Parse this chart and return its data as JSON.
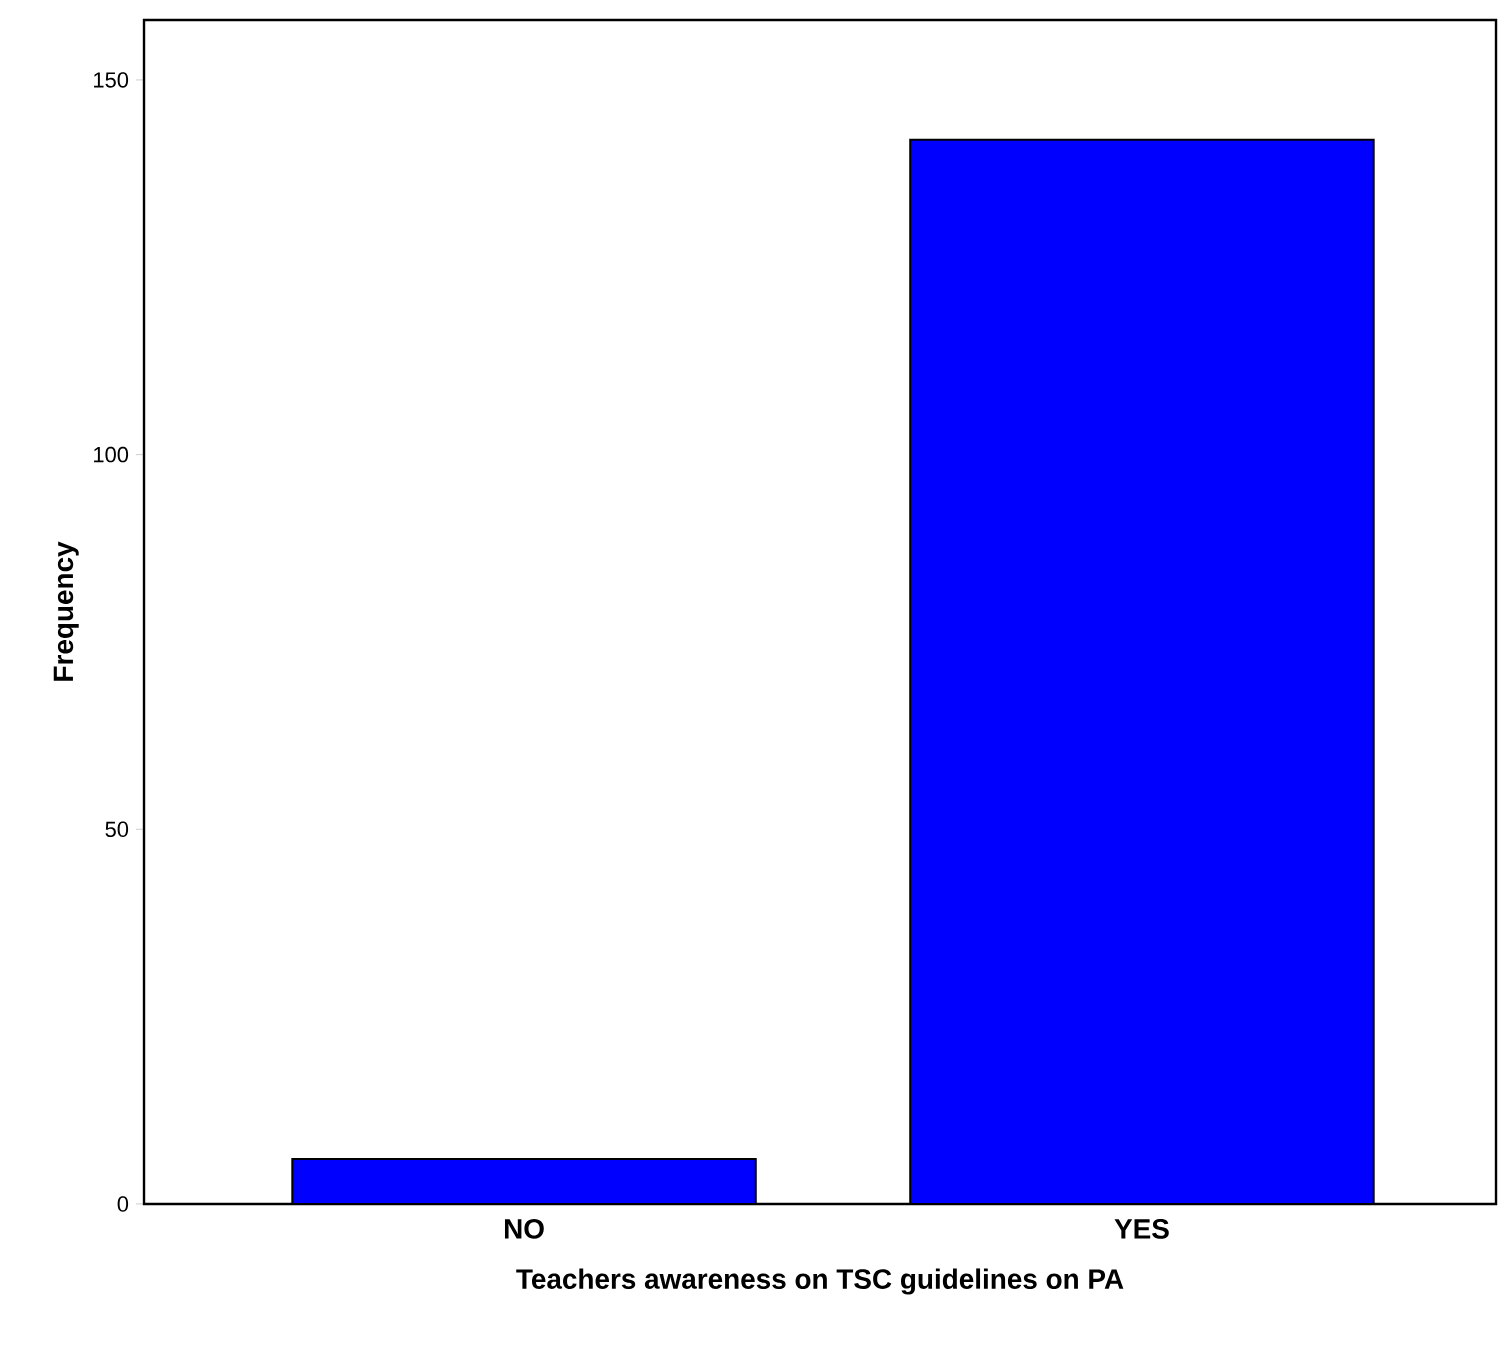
{
  "chart_data": {
    "type": "bar",
    "xlabel": "Teachers awareness on TSC guidelines on PA",
    "ylabel": "Frequency",
    "categories": [
      "NO",
      "YES"
    ],
    "values": [
      6,
      142
    ],
    "color": "#0000ff",
    "ylim": [
      0,
      158
    ],
    "yticks": [
      0,
      50,
      100,
      150
    ],
    "grid": false
  }
}
